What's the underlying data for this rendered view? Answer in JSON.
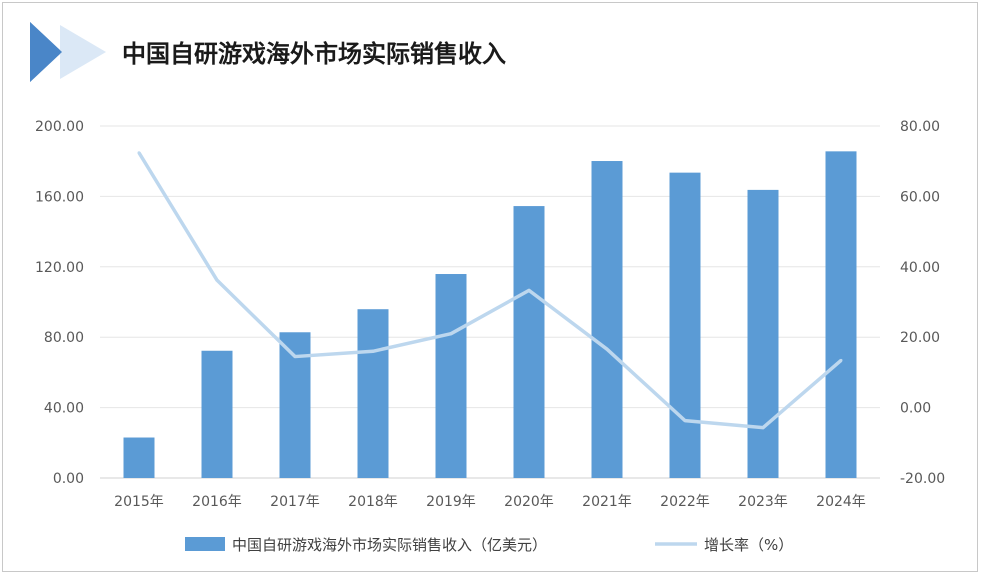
{
  "title": "中国自研游戏海外市场实际销售收入",
  "chart_data": {
    "type": "bar+line",
    "categories": [
      "2015年",
      "2016年",
      "2017年",
      "2018年",
      "2019年",
      "2020年",
      "2021年",
      "2022年",
      "2023年",
      "2024年"
    ],
    "series": [
      {
        "name": "中国自研游戏海外市场实际销售收入（亿美元）",
        "type": "bar",
        "axis": "left",
        "color": "#5b9bd5",
        "values": [
          23.0,
          72.3,
          82.8,
          95.9,
          115.9,
          154.5,
          180.1,
          173.5,
          163.7,
          185.6
        ]
      },
      {
        "name": "增长率（%）",
        "type": "line",
        "axis": "right",
        "color": "#bdd7ee",
        "values": [
          72.4,
          36.2,
          14.5,
          16.0,
          21.0,
          33.3,
          16.6,
          -3.7,
          -5.7,
          13.4
        ]
      }
    ],
    "yleft": {
      "min": 0,
      "max": 200,
      "ticks": [
        "0.00",
        "40.00",
        "80.00",
        "120.00",
        "160.00",
        "200.00"
      ]
    },
    "yright": {
      "min": -20,
      "max": 80,
      "ticks": [
        "-20.00",
        "0.00",
        "20.00",
        "40.00",
        "60.00",
        "80.00"
      ]
    },
    "grid": true,
    "legend": "bottom"
  }
}
